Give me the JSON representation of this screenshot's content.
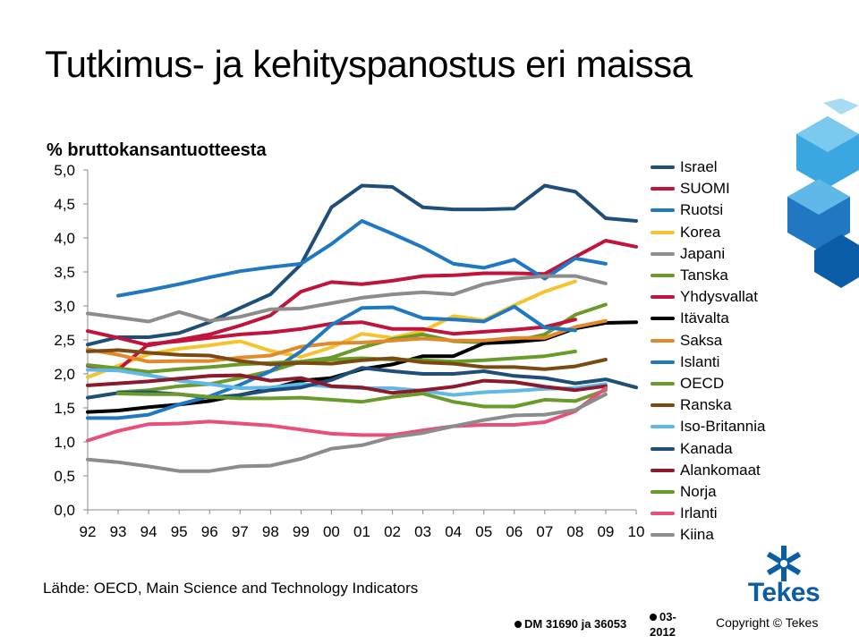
{
  "title": "Tutkimus- ja kehityspanostus eri maissa",
  "footer": {
    "source": "Lähde: OECD, Main Science and Technology Indicators",
    "dm": "DM 31690 ja 36053",
    "date": "03-2012",
    "copyright": "Copyright © Tekes"
  },
  "logo": {
    "text": "Tekes",
    "color": "#0b5da8"
  },
  "chart_data": {
    "type": "line",
    "title": "",
    "ylabel": "% bruttokansantuotteesta",
    "xlabel": "",
    "categories": [
      "92",
      "93",
      "94",
      "95",
      "96",
      "97",
      "98",
      "99",
      "00",
      "01",
      "02",
      "03",
      "04",
      "05",
      "06",
      "07",
      "08",
      "09",
      "10"
    ],
    "ylim": [
      0,
      5
    ],
    "yticks": [
      "0,0",
      "0,5",
      "1,0",
      "1,5",
      "2,0",
      "2,5",
      "3,0",
      "3,5",
      "4,0",
      "4,5",
      "5,0"
    ],
    "grid": false,
    "legend_position": "right",
    "series": [
      {
        "name": "Israel",
        "color": "#1f4e79",
        "values": [
          2.43,
          2.54,
          2.54,
          2.6,
          2.76,
          2.97,
          3.17,
          3.61,
          4.45,
          4.77,
          4.75,
          4.45,
          4.42,
          4.42,
          4.43,
          4.77,
          4.68,
          4.29,
          4.25
        ]
      },
      {
        "name": "SUOMI",
        "color": "#c0143c",
        "values": [
          2.63,
          2.53,
          2.42,
          2.5,
          2.58,
          2.71,
          2.86,
          3.21,
          3.35,
          3.32,
          3.37,
          3.44,
          3.45,
          3.48,
          3.48,
          3.47,
          3.72,
          3.96,
          3.87
        ]
      },
      {
        "name": "Ruotsi",
        "color": "#1f78c1",
        "values": [
          null,
          3.15,
          3.23,
          3.32,
          3.42,
          3.51,
          3.57,
          3.62,
          3.91,
          4.25,
          4.06,
          3.86,
          3.62,
          3.56,
          3.68,
          3.4,
          3.7,
          3.62,
          null
        ]
      },
      {
        "name": "Korea",
        "color": "#f4c430",
        "values": [
          1.95,
          2.12,
          2.29,
          2.37,
          2.42,
          2.48,
          2.34,
          2.25,
          2.39,
          2.59,
          2.53,
          2.63,
          2.85,
          2.79,
          3.01,
          3.21,
          3.36,
          null,
          null
        ]
      },
      {
        "name": "Japani",
        "color": "#8c8c8c",
        "values": [
          2.89,
          2.83,
          2.77,
          2.91,
          2.78,
          2.84,
          2.95,
          2.96,
          3.04,
          3.12,
          3.17,
          3.2,
          3.17,
          3.32,
          3.4,
          3.44,
          3.44,
          3.33,
          null
        ]
      },
      {
        "name": "Tanska",
        "color": "#6a9a2a",
        "values": [
          null,
          1.73,
          1.76,
          1.82,
          1.85,
          1.94,
          2.04,
          2.18,
          2.24,
          2.39,
          2.51,
          2.58,
          2.48,
          2.46,
          2.48,
          2.58,
          2.87,
          3.02,
          null
        ]
      },
      {
        "name": "Yhdysvallat",
        "color": "#c0143c",
        "values": [
          2.12,
          2.06,
          2.44,
          2.48,
          2.53,
          2.58,
          2.61,
          2.66,
          2.74,
          2.76,
          2.66,
          2.66,
          2.59,
          2.62,
          2.65,
          2.69,
          2.8,
          null,
          null
        ]
      },
      {
        "name": "Itävalta",
        "color": "#000000",
        "values": [
          1.44,
          1.46,
          1.51,
          1.55,
          1.6,
          1.69,
          1.78,
          1.9,
          1.94,
          2.07,
          2.14,
          2.26,
          2.26,
          2.45,
          2.47,
          2.51,
          2.67,
          2.75,
          2.76
        ]
      },
      {
        "name": "Saksa",
        "color": "#e08a2c",
        "values": [
          2.36,
          2.28,
          2.18,
          2.19,
          2.19,
          2.24,
          2.27,
          2.4,
          2.45,
          2.46,
          2.49,
          2.52,
          2.49,
          2.49,
          2.53,
          2.53,
          2.69,
          2.78,
          null
        ]
      },
      {
        "name": "Islanti",
        "color": "#1f78c1",
        "values": [
          1.35,
          1.35,
          1.4,
          1.55,
          1.67,
          1.84,
          2.04,
          2.33,
          2.72,
          2.97,
          2.98,
          2.82,
          2.8,
          2.77,
          2.99,
          2.68,
          2.64,
          null,
          null
        ]
      },
      {
        "name": "OECD",
        "color": "#6a9a2a",
        "values": [
          2.13,
          2.08,
          2.03,
          2.07,
          2.1,
          2.14,
          2.16,
          2.18,
          2.21,
          2.23,
          2.21,
          2.2,
          2.18,
          2.2,
          2.23,
          2.26,
          2.33,
          null,
          null
        ]
      },
      {
        "name": "Ranska",
        "color": "#7a4a12",
        "values": [
          2.33,
          2.35,
          2.31,
          2.28,
          2.27,
          2.19,
          2.14,
          2.16,
          2.15,
          2.2,
          2.23,
          2.17,
          2.15,
          2.1,
          2.1,
          2.07,
          2.11,
          2.21,
          null
        ]
      },
      {
        "name": "Iso-Britannia",
        "color": "#5fb8e8",
        "values": [
          2.06,
          2.05,
          1.98,
          1.9,
          1.85,
          1.79,
          1.8,
          1.85,
          1.81,
          1.79,
          1.79,
          1.75,
          1.69,
          1.73,
          1.75,
          1.78,
          1.79,
          1.85,
          null
        ]
      },
      {
        "name": "Kanada",
        "color": "#1f4e79",
        "values": [
          1.65,
          1.72,
          1.73,
          1.7,
          1.65,
          1.69,
          1.76,
          1.8,
          1.91,
          2.09,
          2.04,
          2.0,
          2.0,
          2.04,
          1.97,
          1.94,
          1.86,
          1.92,
          1.8
        ]
      },
      {
        "name": "Alankomaat",
        "color": "#8b1a2c",
        "values": [
          1.83,
          1.86,
          1.89,
          1.93,
          1.97,
          1.98,
          1.9,
          1.94,
          1.82,
          1.8,
          1.72,
          1.76,
          1.81,
          1.9,
          1.88,
          1.81,
          1.76,
          1.82,
          null
        ]
      },
      {
        "name": "Norja",
        "color": "#6a9a2a",
        "values": [
          null,
          1.71,
          1.7,
          1.7,
          1.66,
          1.64,
          1.64,
          1.65,
          1.62,
          1.59,
          1.66,
          1.71,
          1.59,
          1.52,
          1.52,
          1.62,
          1.6,
          1.76,
          null
        ]
      },
      {
        "name": "Irlanti",
        "color": "#e8507a",
        "values": [
          1.02,
          1.16,
          1.26,
          1.27,
          1.3,
          1.27,
          1.24,
          1.18,
          1.12,
          1.1,
          1.1,
          1.17,
          1.23,
          1.25,
          1.25,
          1.29,
          1.45,
          1.79,
          null
        ]
      },
      {
        "name": "Kiina",
        "color": "#8c8c8c",
        "values": [
          0.74,
          0.7,
          0.64,
          0.57,
          0.57,
          0.64,
          0.65,
          0.75,
          0.9,
          0.95,
          1.07,
          1.13,
          1.23,
          1.32,
          1.39,
          1.4,
          1.47,
          1.7,
          null
        ]
      }
    ]
  }
}
